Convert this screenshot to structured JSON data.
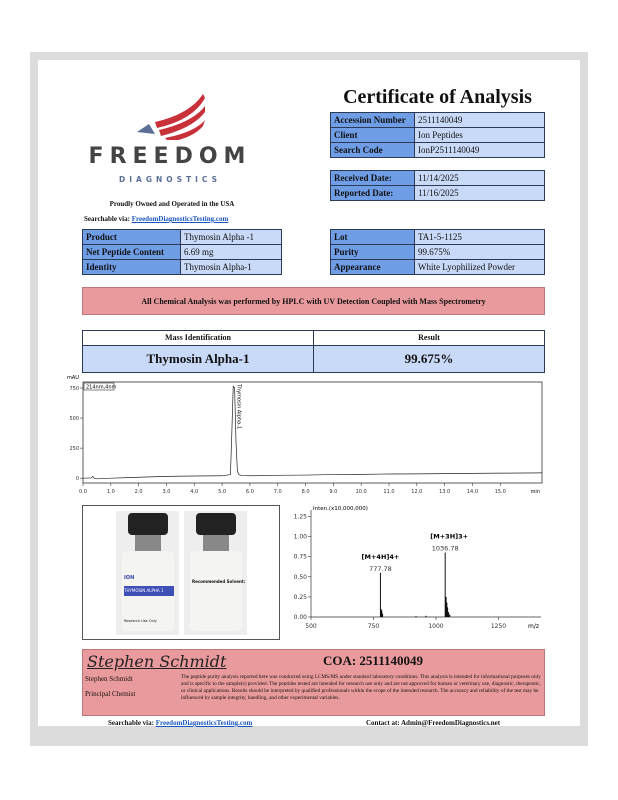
{
  "brand": {
    "name": "FREEDOM",
    "sub": "DIAGNOSTICS",
    "tagline": "Proudly Owned and Operated in the USA",
    "searchable_label": "Searchable via:",
    "site": "FreedomDiagnosticsTesting.com",
    "colors": {
      "red": "#c8303a",
      "blue": "#5b6f96",
      "grey": "#444444"
    }
  },
  "title": "Certificate of Analysis",
  "info": [
    {
      "k": "Accession Number",
      "v": "2511140049"
    },
    {
      "k": "Client",
      "v": "Ion Peptides"
    },
    {
      "k": "Search Code",
      "v": "IonP2511140049"
    }
  ],
  "dates": [
    {
      "k": "Received Date:",
      "v": "11/14/2025"
    },
    {
      "k": "Reported Date:",
      "v": "11/16/2025"
    }
  ],
  "product": [
    {
      "k": "Product",
      "v": "Thymosin Alpha -1"
    },
    {
      "k": "Net Peptide Content",
      "v": "6.69 mg"
    },
    {
      "k": "Identity",
      "v": "Thymosin Alpha-1"
    }
  ],
  "lot": [
    {
      "k": "Lot",
      "v": "TA1-5-1125"
    },
    {
      "k": "Purity",
      "v": "99.675%"
    },
    {
      "k": "Appearance",
      "v": "White Lyophilized Powder"
    }
  ],
  "banner": "All Chemical Analysis was performed by HPLC with UV Detection Coupled with Mass Spectrometry",
  "mass": {
    "h1": "Mass Identification",
    "h2": "Result",
    "name": "Thymosin Alpha-1",
    "result": "99.675%"
  },
  "chart_data": [
    {
      "type": "line",
      "ylabel": "mAU",
      "legend": "214nm,4nm",
      "xunit": "min",
      "xlim": [
        0,
        16.5
      ],
      "ylim": [
        -40,
        800
      ],
      "xticks": [
        "0.0",
        "1.0",
        "2.0",
        "3.0",
        "4.0",
        "5.0",
        "6.0",
        "7.0",
        "8.0",
        "9.0",
        "10.0",
        "11.0",
        "12.0",
        "13.0",
        "14.0",
        "15.0"
      ],
      "yticks": [
        0,
        250,
        500,
        750
      ],
      "peak_label": "Thymosin Alpha-1",
      "x": [
        0,
        0.3,
        0.35,
        0.4,
        0.5,
        1,
        2,
        3,
        4,
        5,
        5.3,
        5.35,
        5.4,
        5.45,
        5.5,
        5.55,
        5.6,
        5.7,
        6,
        7,
        8,
        9,
        10,
        11,
        12,
        13,
        14,
        15,
        16.5
      ],
      "y": [
        0,
        2,
        15,
        0,
        -5,
        0,
        8,
        15,
        18,
        20,
        30,
        380,
        765,
        750,
        300,
        60,
        30,
        22,
        20,
        24,
        26,
        30,
        32,
        35,
        36,
        38,
        40,
        42,
        44
      ]
    },
    {
      "type": "bar",
      "ylabel": "Inten.(x10,000,000)",
      "xunit": "m/z",
      "xlim": [
        500,
        1420
      ],
      "ylim": [
        0,
        1.33
      ],
      "xticks": [
        500,
        750,
        1000,
        1250
      ],
      "yticks": [
        "0.00",
        "0.25",
        "0.50",
        "0.75",
        "1.00",
        "1.25"
      ],
      "peaks": [
        {
          "x": 777.78,
          "y": 0.55,
          "ion": "[M+4H]4+",
          "label": "777.78"
        },
        {
          "x": 1036.78,
          "y": 0.8,
          "ion": "[M+3H]3+",
          "label": "1036.78"
        }
      ],
      "minor": [
        [
          780,
          0.1
        ],
        [
          783,
          0.08
        ],
        [
          786,
          0.04
        ],
        [
          1040,
          0.25
        ],
        [
          1043,
          0.18
        ],
        [
          1046,
          0.12
        ],
        [
          1050,
          0.06
        ],
        [
          1055,
          0.03
        ],
        [
          920,
          0.01
        ],
        [
          960,
          0.015
        ]
      ]
    }
  ],
  "vial": {
    "brand": "ION",
    "sub": "Peptide",
    "label": "THYMOSIN ALPHA 1",
    "ruo": "Research Use Only",
    "back_title": "Recommended Solvent:"
  },
  "signature": {
    "script": "Stephen Schmidt",
    "name": "Stephen Schmidt",
    "role": "Principal Chemist",
    "coa": "COA: 2511140049",
    "disclaimer": "The peptide purity analysis reported here was conducted using LCMS/MS under standard laboratory conditions. This analysis is intended for informational purposes only and is specific to the sample(s) provided. The peptides tested are intended for research use only and are not approved for human or veterinary use, diagnostic, therapeutic, or clinical applications. Results should be interpreted by qualified professionals within the scope of the intended research. The accuracy and reliability of the test may be influenced by sample integrity, handling, and other experimental variables."
  },
  "footer": {
    "searchable_label": "Searchable via:",
    "site": "FreedomDiagnosticsTesting.com",
    "contact": "Contact at: Admin@FreedomDiagnostics.net"
  }
}
